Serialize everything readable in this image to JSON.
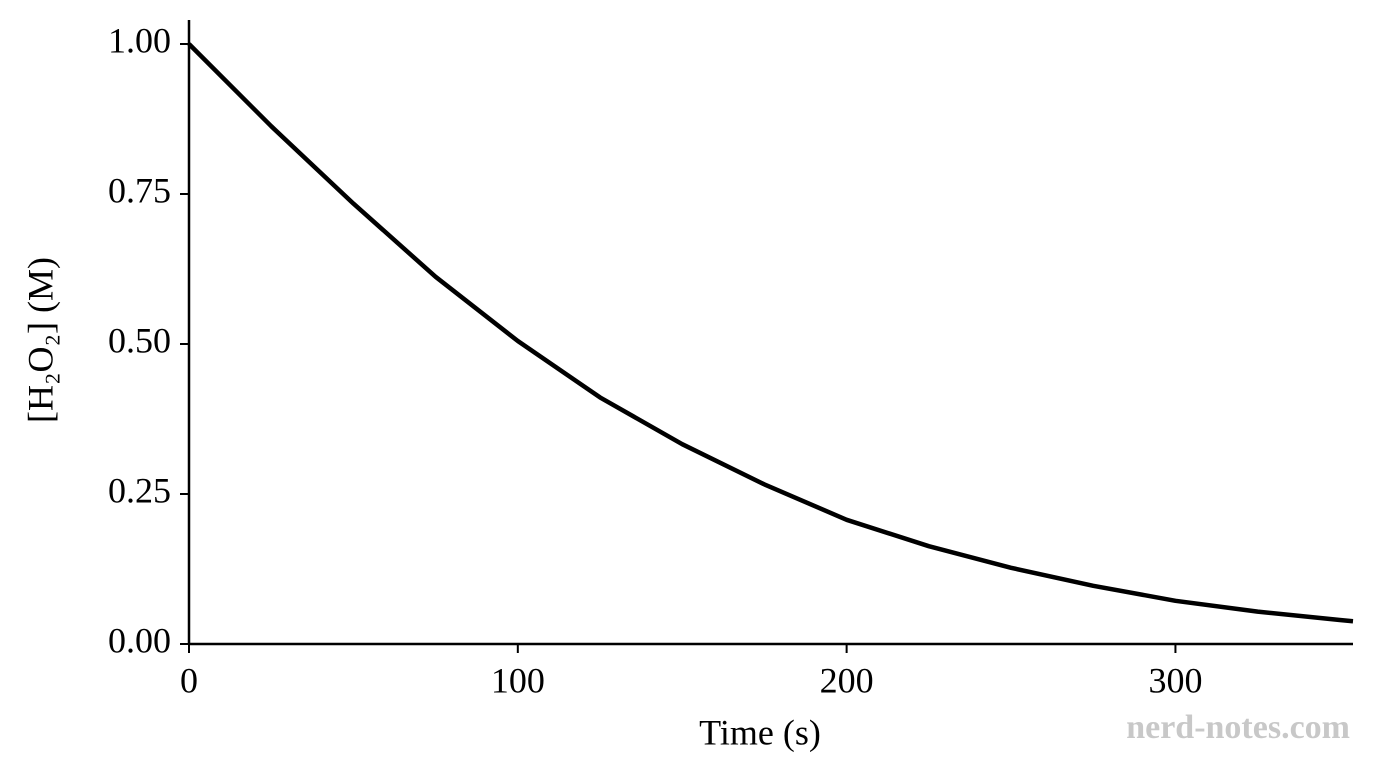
{
  "chart_data": {
    "type": "line",
    "xlabel": "Time (s)",
    "ylabel": "[H₂O₂] (M)",
    "watermark": "nerd-notes.com",
    "x": [
      0,
      25,
      50,
      75,
      100,
      125,
      150,
      175,
      200,
      225,
      250,
      275,
      300,
      325,
      350,
      354
    ],
    "series": [
      {
        "color": "#000000",
        "values": [
          1.0,
          0.863,
          0.734,
          0.612,
          0.505,
          0.411,
          0.333,
          0.266,
          0.207,
          0.163,
          0.127,
          0.097,
          0.072,
          0.054,
          0.04,
          0.038
        ]
      }
    ],
    "xlim": [
      0,
      354
    ],
    "ylim": [
      0,
      1.04
    ],
    "xticks": [
      0,
      100,
      200,
      300
    ],
    "yticks": [
      {
        "value": 0,
        "label": "0.00"
      },
      {
        "value": 0.25,
        "label": "0.25"
      },
      {
        "value": 0.5,
        "label": "0.50"
      },
      {
        "value": 0.75,
        "label": "0.75"
      },
      {
        "value": 1,
        "label": "1.00"
      }
    ],
    "grid": false
  }
}
